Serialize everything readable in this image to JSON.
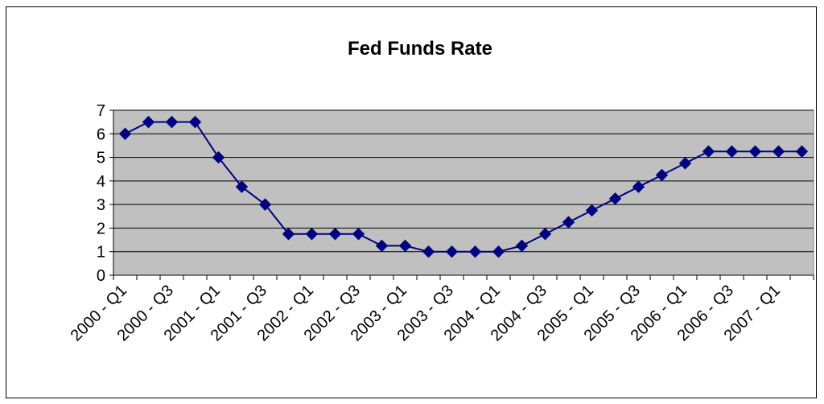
{
  "chart_data": {
    "type": "line",
    "title": "Fed Funds Rate",
    "xlabel": "",
    "ylabel": "",
    "ylim": [
      0,
      7
    ],
    "yticks": [
      0,
      1,
      2,
      3,
      4,
      5,
      6,
      7
    ],
    "grid": true,
    "legend": "none",
    "categories": [
      "2000 - Q1",
      "2000 - Q2",
      "2000 - Q3",
      "2000 - Q4",
      "2001 - Q1",
      "2001 - Q2",
      "2001 - Q3",
      "2001 - Q4",
      "2002 - Q1",
      "2002 - Q2",
      "2002 - Q3",
      "2002 - Q4",
      "2003 - Q1",
      "2003 - Q2",
      "2003 - Q3",
      "2003 - Q4",
      "2004 - Q1",
      "2004 - Q2",
      "2004 - Q3",
      "2004 - Q4",
      "2005 - Q1",
      "2005 - Q2",
      "2005 - Q3",
      "2005 - Q4",
      "2006 - Q1",
      "2006 - Q2",
      "2006 - Q3",
      "2006 - Q4",
      "2007 - Q1",
      "2007 - Q2"
    ],
    "tick_labels": [
      "2000 - Q1",
      "2000 - Q3",
      "2001 - Q1",
      "2001 - Q3",
      "2002 - Q1",
      "2002 - Q3",
      "2003 - Q1",
      "2003 - Q3",
      "2004 - Q1",
      "2004 - Q3",
      "2005 - Q1",
      "2005 - Q3",
      "2006 - Q1",
      "2006 - Q3",
      "2007 - Q1"
    ],
    "series": [
      {
        "values": [
          6,
          6.5,
          6.5,
          6.5,
          5,
          3.75,
          3,
          1.75,
          1.75,
          1.75,
          1.75,
          1.25,
          1.25,
          1,
          1,
          1,
          1,
          1.25,
          1.75,
          2.25,
          2.75,
          3.25,
          3.75,
          4.25,
          4.75,
          5.25,
          5.25,
          5.25,
          5.25,
          5.25
        ]
      }
    ],
    "colors": {
      "line": "#000080",
      "plot_bg": "#c0c0c0",
      "grid": "#000000"
    }
  }
}
